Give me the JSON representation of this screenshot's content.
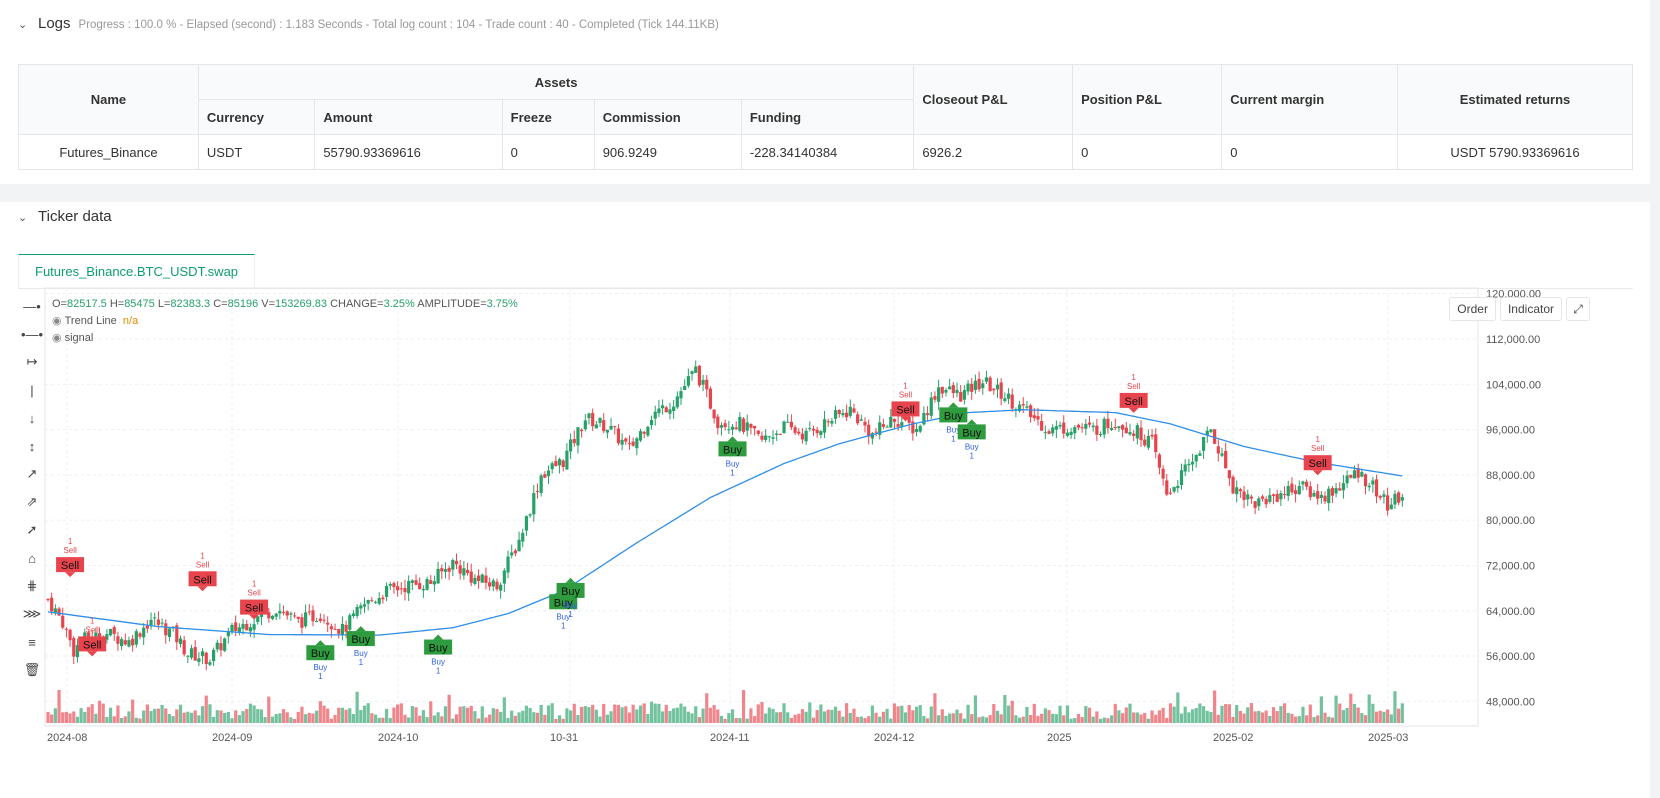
{
  "logs": {
    "title": "Logs",
    "progress": "Progress : 100.0 % - Elapsed (second) : 1.183  Seconds - Total log count : 104 - Trade count : 40 - Completed (Tick 144.11KB)"
  },
  "assets_table": {
    "headers": {
      "name": "Name",
      "assets": "Assets",
      "closeout": "Closeout P&L",
      "position": "Position P&L",
      "margin": "Current margin",
      "returns": "Estimated returns",
      "currency": "Currency",
      "amount": "Amount",
      "freeze": "Freeze",
      "commission": "Commission",
      "funding": "Funding"
    },
    "row": {
      "name": "Futures_Binance",
      "currency": "USDT",
      "amount": "55790.93369616",
      "freeze": "0",
      "commission": "906.9249",
      "funding": "-228.34140384",
      "closeout": "6926.2",
      "position": "0",
      "margin": "0",
      "returns": "USDT 5790.93369616"
    }
  },
  "ticker": {
    "title": "Ticker data",
    "tab": "Futures_Binance.BTC_USDT.swap",
    "buttons": {
      "order": "Order",
      "indicator": "Indicator"
    },
    "ohlc": {
      "o_label": "O=",
      "o": "82517.5",
      "h_label": "H=",
      "h": "85475",
      "l_label": "L=",
      "l": "82383.3",
      "c_label": "C=",
      "c": "85196",
      "v_label": "V=",
      "v": "153269.83",
      "change_label": "CHANGE=",
      "change": "3.25%",
      "amp_label": "AMPLITUDE=",
      "amp": "3.75%"
    },
    "indicators": {
      "trend_line": "Trend Line",
      "trend_value": "n/a",
      "signal": "signal"
    }
  },
  "chart_data": {
    "type": "candlestick",
    "x_ticks": [
      "2024-08",
      "2024-09",
      "2024-10",
      "10-31",
      "2024-11",
      "2024-12",
      "2025",
      "2025-02",
      "2025-03"
    ],
    "y_ticks": [
      "120,000.00",
      "112,000.00",
      "104,000.00",
      "96,000.00",
      "88,000.00",
      "80,000.00",
      "72,000.00",
      "64,000.00",
      "56,000.00",
      "48,000.00"
    ],
    "ylim": [
      44000,
      121000
    ],
    "close_anchors": [
      [
        0,
        66000
      ],
      [
        4,
        62000
      ],
      [
        7,
        57000
      ],
      [
        10,
        59000
      ],
      [
        16,
        60000
      ],
      [
        22,
        58500
      ],
      [
        28,
        62500
      ],
      [
        34,
        60000
      ],
      [
        38,
        56500
      ],
      [
        44,
        55500
      ],
      [
        50,
        60500
      ],
      [
        56,
        62500
      ],
      [
        62,
        64500
      ],
      [
        68,
        62000
      ],
      [
        74,
        63500
      ],
      [
        80,
        60500
      ],
      [
        86,
        65000
      ],
      [
        92,
        67500
      ],
      [
        98,
        68500
      ],
      [
        104,
        69000
      ],
      [
        110,
        72500
      ],
      [
        116,
        69500
      ],
      [
        122,
        68500
      ],
      [
        128,
        76500
      ],
      [
        134,
        88000
      ],
      [
        140,
        90500
      ],
      [
        146,
        98000
      ],
      [
        152,
        96500
      ],
      [
        158,
        92500
      ],
      [
        164,
        98500
      ],
      [
        170,
        101000
      ],
      [
        176,
        106500
      ],
      [
        182,
        97500
      ],
      [
        188,
        97000
      ],
      [
        194,
        94000
      ],
      [
        200,
        96500
      ],
      [
        206,
        95000
      ],
      [
        212,
        97500
      ],
      [
        218,
        99500
      ],
      [
        224,
        95000
      ],
      [
        230,
        98000
      ],
      [
        236,
        96000
      ],
      [
        242,
        103500
      ],
      [
        248,
        102000
      ],
      [
        254,
        104500
      ],
      [
        260,
        102000
      ],
      [
        266,
        99000
      ],
      [
        272,
        96000
      ],
      [
        278,
        96500
      ],
      [
        284,
        96000
      ],
      [
        290,
        97500
      ],
      [
        296,
        95500
      ],
      [
        300,
        93500
      ],
      [
        304,
        84500
      ],
      [
        310,
        89500
      ],
      [
        316,
        96000
      ],
      [
        322,
        86000
      ],
      [
        328,
        83000
      ],
      [
        334,
        84500
      ],
      [
        340,
        86000
      ],
      [
        346,
        84000
      ],
      [
        352,
        86500
      ],
      [
        356,
        88500
      ],
      [
        360,
        86000
      ],
      [
        364,
        82500
      ],
      [
        368,
        84500
      ]
    ],
    "trend_anchors": [
      [
        0,
        63800
      ],
      [
        30,
        61200
      ],
      [
        60,
        59800
      ],
      [
        90,
        59700
      ],
      [
        110,
        61000
      ],
      [
        125,
        63500
      ],
      [
        140,
        67500
      ],
      [
        160,
        76000
      ],
      [
        180,
        84000
      ],
      [
        200,
        90000
      ],
      [
        215,
        93500
      ],
      [
        235,
        97000
      ],
      [
        250,
        99000
      ],
      [
        265,
        99500
      ],
      [
        290,
        99000
      ],
      [
        305,
        97000
      ],
      [
        325,
        93000
      ],
      [
        345,
        90200
      ],
      [
        368,
        87800
      ]
    ],
    "signals": [
      {
        "type": "Sell",
        "i": 6,
        "price": 71000
      },
      {
        "type": "Sell",
        "i": 12,
        "price": 57000
      },
      {
        "type": "Sell",
        "i": 42,
        "price": 68500
      },
      {
        "type": "Sell",
        "i": 56,
        "price": 63500
      },
      {
        "type": "Buy",
        "i": 74,
        "price": 56500
      },
      {
        "type": "Buy",
        "i": 85,
        "price": 59000
      },
      {
        "type": "Buy",
        "i": 106,
        "price": 57500
      },
      {
        "type": "Buy",
        "i": 140,
        "price": 65500
      },
      {
        "type": "Buy",
        "i": 142,
        "price": 67500
      },
      {
        "type": "Buy",
        "i": 186,
        "price": 92500
      },
      {
        "type": "Sell",
        "i": 233,
        "price": 98500
      },
      {
        "type": "Buy",
        "i": 246,
        "price": 98500
      },
      {
        "type": "Buy",
        "i": 251,
        "price": 95500
      },
      {
        "type": "Sell",
        "i": 295,
        "price": 100000
      },
      {
        "type": "Sell",
        "i": 345,
        "price": 89000
      }
    ],
    "signal_sub": {
      "Buy": "Buy",
      "Sell": "Sell",
      "count": "1"
    }
  },
  "colors": {
    "up": "#26a269",
    "down": "#e8444d",
    "trend": "#2f8fe8",
    "buy": "#2e9b3f",
    "sell": "#e8444d",
    "accent": "#0d9e6e"
  }
}
